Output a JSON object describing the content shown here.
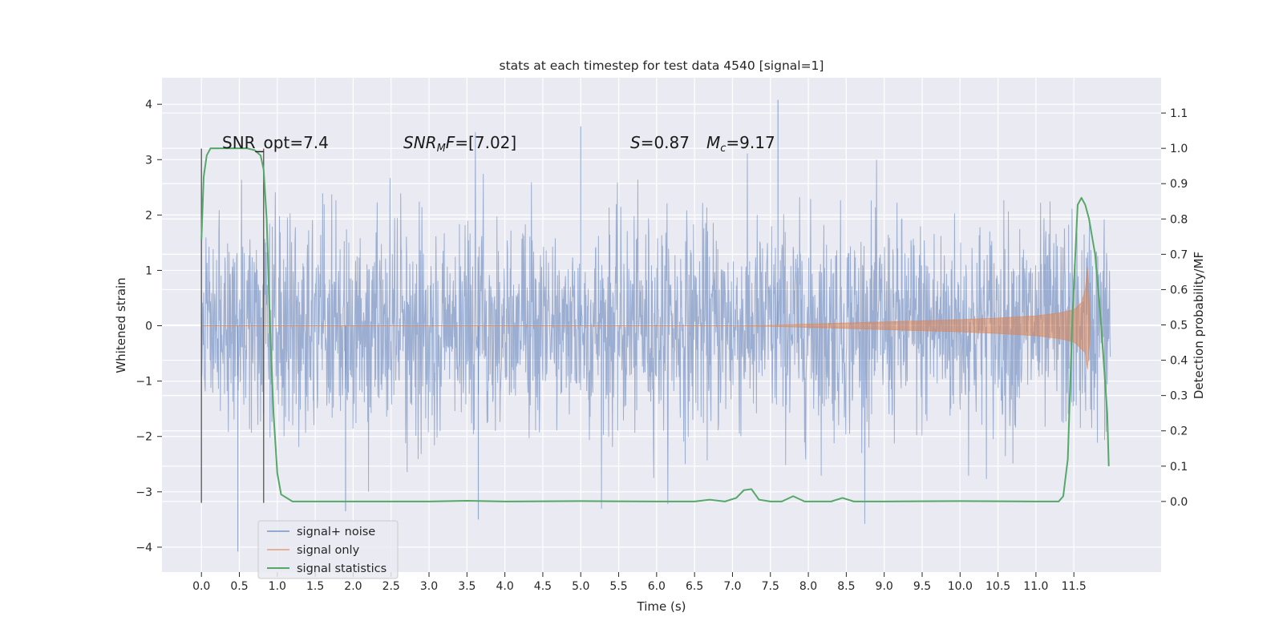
{
  "chart_data": {
    "type": "line",
    "title": "stats at each timestep for test data 4540 [signal=1]",
    "xlabel": "Time (s)",
    "ylabel": "Whitened strain",
    "y2label": "Detection probability/MF",
    "xlim": [
      -0.52,
      12.65
    ],
    "ylim": [
      -4.45,
      4.48
    ],
    "y2lim": [
      -0.2,
      1.2
    ],
    "xticks": [
      0.0,
      0.5,
      1.0,
      1.5,
      2.0,
      2.5,
      3.0,
      3.5,
      4.0,
      4.5,
      5.0,
      5.5,
      6.0,
      6.5,
      7.0,
      7.5,
      8.0,
      8.5,
      9.0,
      9.5,
      10.0,
      10.5,
      11.0,
      11.5
    ],
    "xtick_labels": [
      "0.0",
      "0.5",
      "1.0",
      "1.5",
      "2.0",
      "2.5",
      "3.0",
      "3.5",
      "4.0",
      "4.5",
      "5.0",
      "5.5",
      "6.0",
      "6.5",
      "7.0",
      "7.5",
      "8.0",
      "8.5",
      "9.0",
      "9.5",
      "10.0",
      "10.5",
      "11.0",
      "11.5"
    ],
    "yticks": [
      4,
      3,
      2,
      1,
      0,
      -1,
      -2,
      -3,
      -4
    ],
    "ytick_labels": [
      "4",
      "3",
      "2",
      "1",
      "0",
      "−1",
      "−2",
      "−3",
      "−4"
    ],
    "y2ticks": [
      1.1,
      1.0,
      0.9,
      0.8,
      0.7,
      0.6,
      0.5,
      0.4,
      0.3,
      0.2,
      0.1,
      0.0
    ],
    "y2tick_labels": [
      "1.1",
      "1.0",
      "0.9",
      "0.8",
      "0.7",
      "0.6",
      "0.5",
      "0.4",
      "0.3",
      "0.2",
      "0.1",
      "0.0"
    ],
    "grid": true,
    "legend_position": "lower-left",
    "legend": [
      "signal+ noise",
      "signal only",
      "signal statistics"
    ],
    "annotations": {
      "snr_opt": "SNR_opt=7.4",
      "snr_mf_italic": "SNR",
      "snr_mf_sub": "M",
      "snr_mf_italic2": "F",
      "snr_mf_value": "=[7.02]",
      "s_italic": "S",
      "s_value": "=0.87",
      "mc_italic": "M",
      "mc_sub": "c",
      "mc_value": "=9.17"
    },
    "vertical_markers": [
      0.0,
      0.82
    ],
    "series": [
      {
        "name": "signal+ noise",
        "color": "#4c72b0",
        "time_range": [
          0.0,
          11.98
        ],
        "sample_count": 2400,
        "std": 0.95,
        "envelope_max": 4.1,
        "envelope_min": -4.08,
        "notable_peaks": [
          [
            7.6,
            4.08
          ],
          [
            5.0,
            3.6
          ],
          [
            0.48,
            -4.08
          ],
          [
            3.65,
            -3.5
          ],
          [
            1.9,
            -3.35
          ]
        ]
      },
      {
        "name": "signal only",
        "color": "#dd8452",
        "x": [
          0.0,
          7.0,
          7.5,
          8.0,
          8.5,
          9.0,
          9.5,
          10.0,
          10.5,
          11.0,
          11.3,
          11.5,
          11.6,
          11.65,
          11.68,
          11.72
        ],
        "amplitude": [
          0.0,
          0.0,
          0.01,
          0.03,
          0.05,
          0.07,
          0.09,
          0.11,
          0.14,
          0.18,
          0.23,
          0.29,
          0.42,
          0.65,
          1.05,
          0.0
        ]
      },
      {
        "name": "signal statistics",
        "color": "#55a868",
        "x": [
          0.0,
          0.03,
          0.07,
          0.12,
          0.2,
          0.4,
          0.6,
          0.7,
          0.78,
          0.82,
          0.86,
          0.9,
          0.95,
          1.0,
          1.05,
          1.2,
          2.0,
          3.0,
          3.5,
          4.0,
          5.0,
          6.0,
          6.5,
          6.7,
          6.9,
          7.05,
          7.15,
          7.25,
          7.35,
          7.5,
          7.65,
          7.8,
          7.95,
          8.1,
          8.3,
          8.45,
          8.6,
          9.0,
          10.0,
          11.0,
          11.3,
          11.36,
          11.42,
          11.48,
          11.55,
          11.6,
          11.65,
          11.7,
          11.78,
          11.86,
          11.94,
          11.96
        ],
        "values": [
          0.74,
          0.92,
          0.98,
          1.0,
          1.0,
          1.0,
          1.0,
          0.995,
          0.98,
          0.94,
          0.8,
          0.52,
          0.25,
          0.08,
          0.02,
          0.0,
          0.0,
          0.0,
          0.002,
          0.0,
          0.001,
          0.0,
          0.0,
          0.005,
          0.0,
          0.01,
          0.032,
          0.035,
          0.005,
          0.0,
          0.0,
          0.015,
          0.0,
          0.0,
          0.0,
          0.01,
          0.0,
          0.0,
          0.001,
          0.0,
          0.0,
          0.015,
          0.12,
          0.52,
          0.84,
          0.86,
          0.84,
          0.8,
          0.7,
          0.5,
          0.25,
          0.1
        ]
      }
    ]
  }
}
